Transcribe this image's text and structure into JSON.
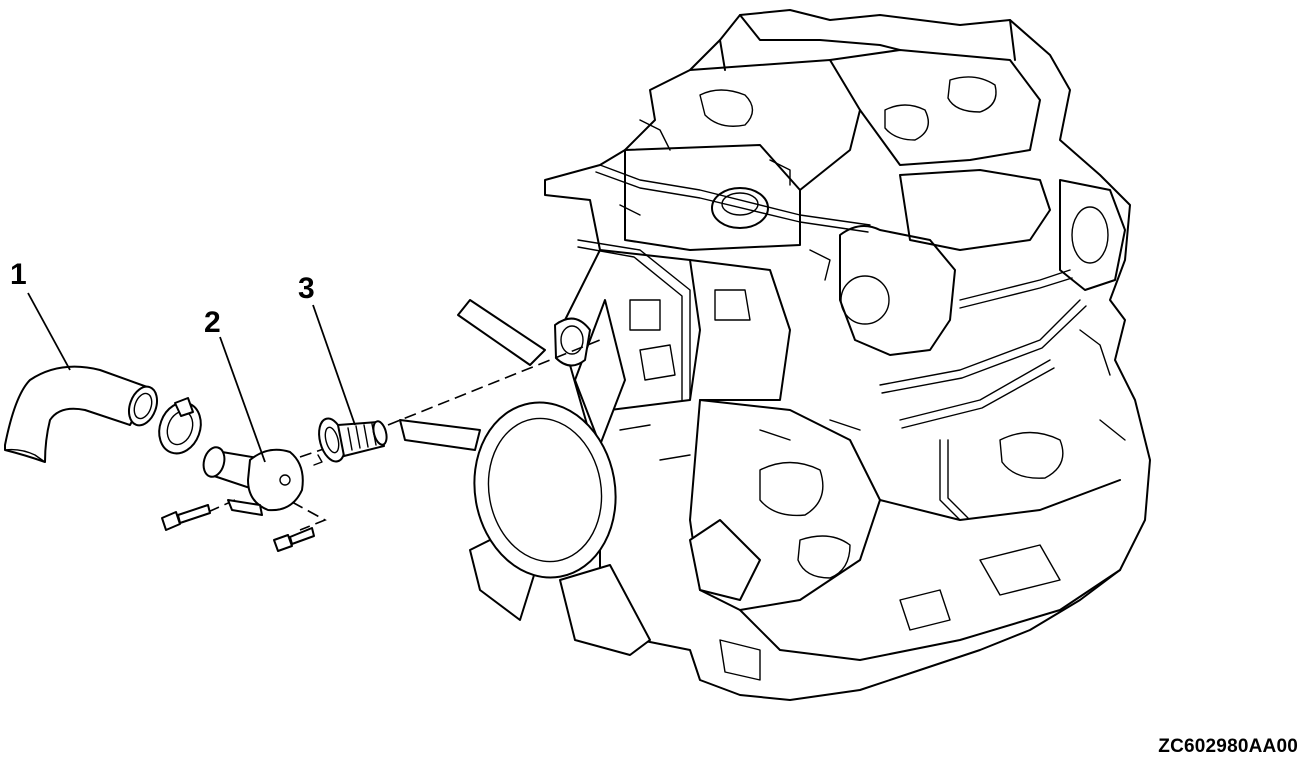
{
  "diagram": {
    "figure_code": "ZC602980AA00",
    "callouts": [
      {
        "number": "1"
      },
      {
        "number": "2"
      },
      {
        "number": "3"
      }
    ]
  }
}
